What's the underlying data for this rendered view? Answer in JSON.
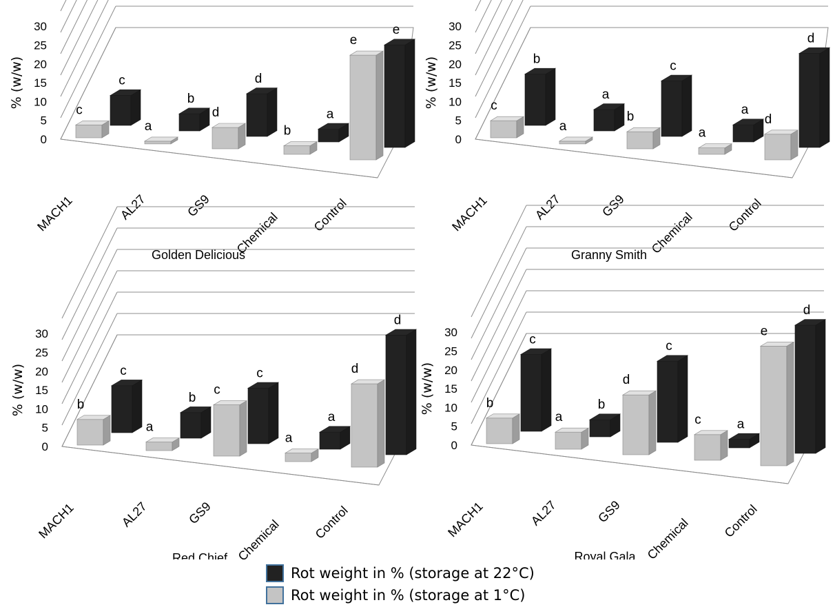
{
  "colors": {
    "warm": "#222222",
    "cold": "#c4c4c4"
  },
  "legend": [
    {
      "label": "Rot weight in % (storage at 22°C)",
      "color_key": "warm"
    },
    {
      "label": "Rot weight in % (storage at 1°C)",
      "color_key": "cold"
    }
  ],
  "chart_data": [
    {
      "type": "bar",
      "subtitle": "Golden Delicious",
      "ylabel": "% (w/w)",
      "ylim": [
        0,
        30
      ],
      "yticks": [
        0,
        5,
        10,
        15,
        20,
        25,
        30
      ],
      "categories": [
        "MACH1",
        "AL27",
        "GS9",
        "Chemical",
        "Control"
      ],
      "series": [
        {
          "name": "Rot weight in % (storage at 22°C)",
          "values": [
            7,
            4,
            10,
            3,
            24
          ],
          "letters": [
            "c",
            "b",
            "d",
            "a",
            "e"
          ]
        },
        {
          "name": "Rot weight in % (storage at 1°C)",
          "values": [
            3,
            0.5,
            5,
            2,
            24.5
          ],
          "letters": [
            "c",
            "a",
            "d",
            "b",
            "e"
          ]
        }
      ]
    },
    {
      "type": "bar",
      "subtitle": "Granny Smith",
      "ylabel": "% (w/w)",
      "ylim": [
        0,
        30
      ],
      "yticks": [
        0,
        5,
        10,
        15,
        20,
        25,
        30
      ],
      "categories": [
        "MACH1",
        "AL27",
        "GS9",
        "Chemical",
        "Control"
      ],
      "series": [
        {
          "name": "Rot weight in % (storage at 22°C)",
          "values": [
            12,
            5,
            13,
            4,
            22
          ],
          "letters": [
            "b",
            "a",
            "c",
            "a",
            "d"
          ]
        },
        {
          "name": "Rot weight in % (storage at 1°C)",
          "values": [
            4,
            0.5,
            4,
            1.5,
            6
          ],
          "letters": [
            "c",
            "a",
            "b",
            "a",
            "d"
          ]
        }
      ]
    },
    {
      "type": "bar",
      "subtitle": "Red Chief",
      "ylabel": "% (w/w)",
      "ylim": [
        0,
        30
      ],
      "yticks": [
        0,
        5,
        10,
        15,
        20,
        25,
        30
      ],
      "categories": [
        "MACH1",
        "AL27",
        "GS9",
        "Chemical",
        "Control"
      ],
      "series": [
        {
          "name": "Rot weight in % (storage at 22°C)",
          "values": [
            11,
            6,
            13,
            4,
            28
          ],
          "letters": [
            "c",
            "b",
            "c",
            "a",
            "d"
          ]
        },
        {
          "name": "Rot weight in % (storage at 1°C)",
          "values": [
            6,
            2,
            12,
            2,
            19.5
          ],
          "letters": [
            "b",
            "a",
            "c",
            "a",
            "d"
          ]
        }
      ]
    },
    {
      "type": "bar",
      "subtitle": "Royal Gala",
      "ylabel": "% (w/w)",
      "ylim": [
        0,
        30
      ],
      "yticks": [
        0,
        5,
        10,
        15,
        20,
        25,
        30
      ],
      "categories": [
        "MACH1",
        "AL27",
        "GS9",
        "Chemical",
        "Control"
      ],
      "series": [
        {
          "name": "Rot weight in % (storage at 22°C)",
          "values": [
            18,
            4,
            19,
            2,
            30
          ],
          "letters": [
            "c",
            "b",
            "c",
            "a",
            "d"
          ]
        },
        {
          "name": "Rot weight in % (storage at 1°C)",
          "values": [
            6,
            4,
            14,
            6,
            28
          ],
          "letters": [
            "b",
            "a",
            "d",
            "c",
            "e"
          ]
        }
      ]
    }
  ]
}
